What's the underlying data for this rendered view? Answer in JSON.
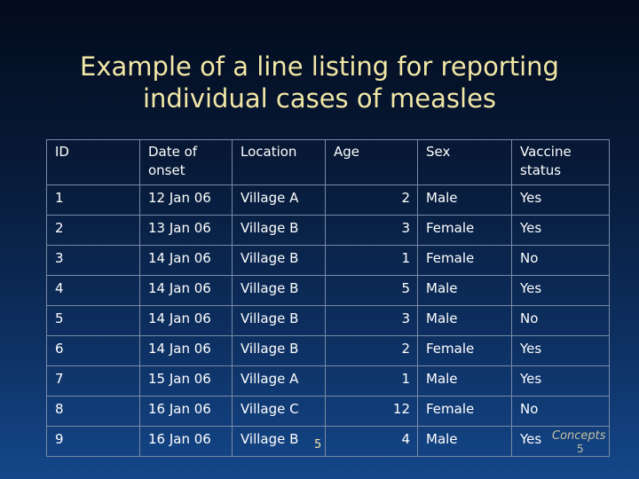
{
  "title_line1": "Example of a line listing for reporting",
  "title_line2": "individual cases of measles",
  "table": {
    "headers": {
      "id": "ID",
      "date_line1": "Date of",
      "date_line2": "onset",
      "location": "Location",
      "age": "Age",
      "sex": "Sex",
      "vaccine_line1": "Vaccine",
      "vaccine_line2": "status"
    },
    "rows": [
      {
        "id": "1",
        "date": "12 Jan 06",
        "location": "Village A",
        "age": "2",
        "sex": "Male",
        "vaccine": "Yes"
      },
      {
        "id": "2",
        "date": "13 Jan 06",
        "location": "Village B",
        "age": "3",
        "sex": "Female",
        "vaccine": "Yes"
      },
      {
        "id": "3",
        "date": "14 Jan 06",
        "location": "Village B",
        "age": "1",
        "sex": "Female",
        "vaccine": "No"
      },
      {
        "id": "4",
        "date": "14 Jan 06",
        "location": "Village B",
        "age": "5",
        "sex": "Male",
        "vaccine": "Yes"
      },
      {
        "id": "5",
        "date": "14 Jan 06",
        "location": "Village B",
        "age": "3",
        "sex": "Male",
        "vaccine": "No"
      },
      {
        "id": "6",
        "date": "14 Jan 06",
        "location": "Village B",
        "age": "2",
        "sex": "Female",
        "vaccine": "Yes"
      },
      {
        "id": "7",
        "date": "15 Jan 06",
        "location": "Village A",
        "age": "1",
        "sex": "Male",
        "vaccine": "Yes"
      },
      {
        "id": "8",
        "date": "16 Jan 06",
        "location": "Village C",
        "age": "12",
        "sex": "Female",
        "vaccine": "No"
      },
      {
        "id": "9",
        "date": "16 Jan 06",
        "location": "Village B",
        "age": "4",
        "sex": "Male",
        "vaccine": "Yes"
      }
    ]
  },
  "slide_number": "5",
  "footer": {
    "concept_label": "Concepts",
    "concept_number": "5"
  },
  "colors": {
    "title": "#f2e7a6",
    "background_top": "#030b1c",
    "background_bottom": "#14478a",
    "grid_lines": "#7a8aa6"
  }
}
